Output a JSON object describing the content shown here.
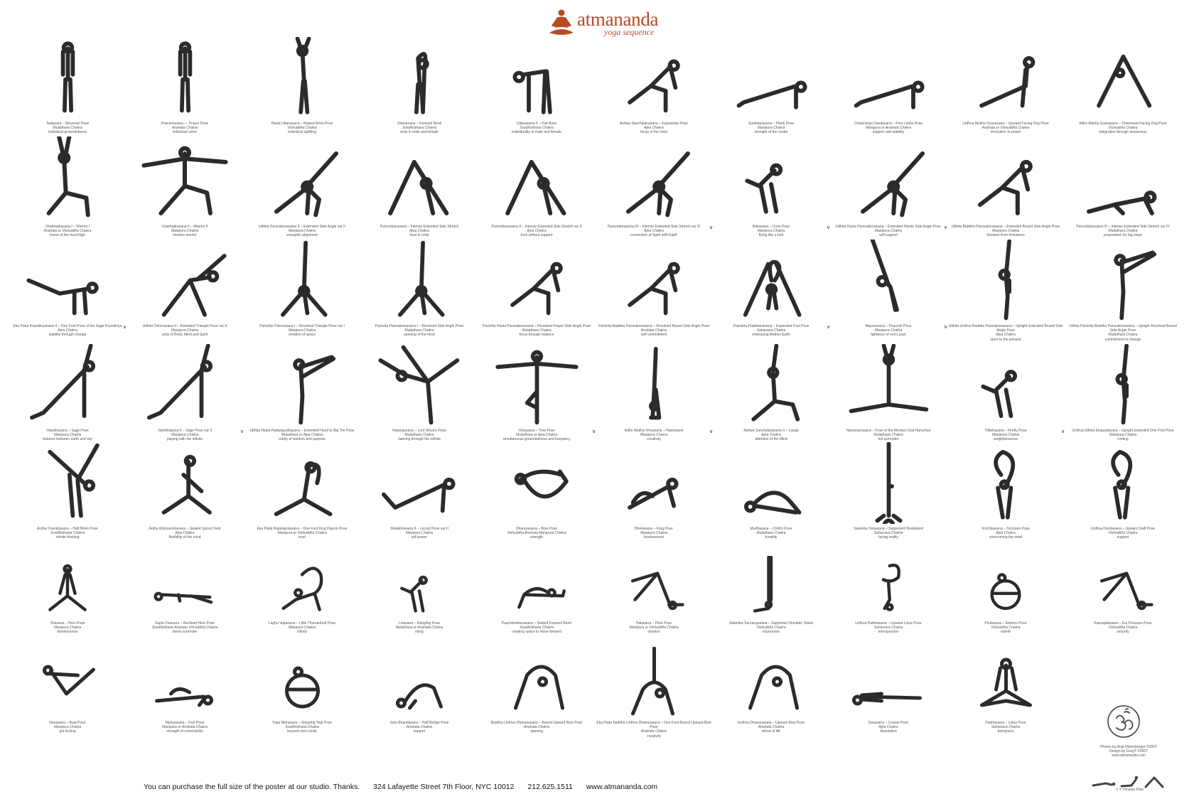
{
  "brand": {
    "name": "atmananda",
    "tagline": "yoga sequence"
  },
  "rows": [
    {
      "poses": [
        {
          "name": "Tadasana – Mountain Pose",
          "chakra": "Muladhara Chakra",
          "meaning": "individual groundedness",
          "shape": "stand"
        },
        {
          "name": "Pranamasana — Prayer Pose",
          "chakra": "Anahata Chakra",
          "meaning": "individual union",
          "shape": "stand"
        },
        {
          "name": "Hasta Uttanasana – Raised Arms Pose",
          "chakra": "Vishuddha Chakra",
          "meaning": "individual uplifting",
          "shape": "raise"
        },
        {
          "name": "Uttanasana – Forward Bend",
          "chakra": "Svadhisthana Chakra",
          "meaning": "unity in male and female",
          "shape": "fold"
        },
        {
          "name": "Uttanasana II – Flat Back",
          "chakra": "Svadhisthana Chakra",
          "meaning": "individuality of male and female",
          "shape": "flat"
        },
        {
          "name": "Ashwa Sanchalanasana – Equestrian Pose",
          "chakra": "Ajna Chakra",
          "meaning": "focus of the mind",
          "shape": "lunge"
        },
        {
          "name": "Santolanasana – Plank Pose",
          "chakra": "Manipura Chakra",
          "meaning": "strength of the center",
          "shape": "plank"
        },
        {
          "name": "Chaturanga Dandasana – Four Limbs Pose",
          "chakra": "Manipura or Anahata Chakra",
          "meaning": "support and stability",
          "shape": "plank"
        },
        {
          "name": "Urdhva Mukha Svanasana – Upward Facing Dog Pose",
          "chakra": "Anahata or Vishuddha Chakra",
          "meaning": "invocation to power",
          "shape": "updog"
        },
        {
          "name": "Adho Mukha Svanasana – Downward Facing Dog Pose",
          "chakra": "Vishuddha Chakra",
          "meaning": "integration through awareness",
          "shape": "downdog"
        }
      ]
    },
    {
      "poses": [
        {
          "name": "Virabhadrasana I – Warrior I",
          "chakra": "Anahata or Vishuddha Chakra",
          "meaning": "honor of the most high",
          "shape": "warrior1"
        },
        {
          "name": "Virabhadrasana II – Warrior II",
          "chakra": "Manipura Chakra",
          "meaning": "intuitive warrior",
          "shape": "warrior2"
        },
        {
          "name": "Utthita Parsvakonasana II – Extended Side Angle var II",
          "chakra": "Manipura Chakra",
          "meaning": "energetic alignment",
          "shape": "sideangle"
        },
        {
          "name": "Parsvottanasana – Intense Extended Side Stretch",
          "chakra": "Ajna Chakra",
          "meaning": "trust in unity",
          "shape": "pyramid"
        },
        {
          "name": "Parsvottanasana II – Intense Extended Side Stretch var II",
          "chakra": "Ajna Chakra",
          "meaning": "trust without support",
          "shape": "pyramid"
        },
        {
          "name": "Parsvottanasana III – Intense Extended Side Stretch var III",
          "chakra": "Ajna Chakra",
          "meaning": "connection of Spirit with Earth",
          "shape": "sideangle"
        },
        {
          "name": "Bakasana – Crow Pose",
          "chakra": "Manipura Chakra",
          "meaning": "flying like a bird",
          "shape": "crow"
        },
        {
          "name": "Utthita Hasta Parsvakonasana – Extended Hands Side Angle Pose",
          "chakra": "Manipura Chakra",
          "meaning": "self support",
          "shape": "sideangle"
        },
        {
          "name": "Utthita Baddha Parsvakonasana – Extended Bound Side Angle Pose",
          "chakra": "Manipura Chakra",
          "meaning": "freedom from limitations",
          "shape": "lunge"
        },
        {
          "name": "Parsvottanasana IV – Intense Extended Side Stretch var IV",
          "chakra": "Muladhara Chakra",
          "meaning": "preparation for big steps",
          "shape": "lowlunge"
        }
      ],
      "vmarks": [
        5,
        6,
        7
      ]
    },
    {
      "poses": [
        {
          "name": "Eka Pada Koundinyasana II – One Foot Pose of the Sage Koundinya",
          "chakra": "Ajna Chakra",
          "meaning": "stability through change",
          "shape": "armbalance"
        },
        {
          "name": "Utthita Trikonasana II – Extended Triangle Pose var II",
          "chakra": "Manipura Chakra",
          "meaning": "unity of Body, Mind and Spirit",
          "shape": "triangle"
        },
        {
          "name": "Parivrtta Trikonasana I – Revolved Triangle Pose var I",
          "chakra": "Manipura Chakra",
          "meaning": "creation of space",
          "shape": "triangleup"
        },
        {
          "name": "Parivrtta Parsvakonasana I – Revolved Side Angle Pose",
          "chakra": "Muladhara Chakra",
          "meaning": "opening of the mind",
          "shape": "triangleup"
        },
        {
          "name": "Parivrtta Hasta Parsvakonasana – Revolved Prayer Side Angle Pose",
          "chakra": "Muladhara Chakra",
          "meaning": "focus through balance",
          "shape": "lunge"
        },
        {
          "name": "Parivrtta Baddha Parsvakonasana – Revolved Bound Side Angle Pose",
          "chakra": "Anahata Chakra",
          "meaning": "self commitment",
          "shape": "lunge"
        },
        {
          "name": "Prasarita Padottanasana – Expanded Foot Pose",
          "chakra": "Sahasrara Chakra",
          "meaning": "embracing Mother Earth",
          "shape": "widefold"
        },
        {
          "name": "Mayurasana – Peacock Pose",
          "chakra": "Manipura Chakra",
          "meaning": "lightness of one's past",
          "shape": "peacock"
        },
        {
          "name": "Utthita Urdhva Baddha Parsvakonasana – Upright Extended Bound Side Angle Pose",
          "chakra": "Ajna Chakra",
          "meaning": "open to the present",
          "shape": "standsplit"
        },
        {
          "name": "Utthita Parivrtta Baddha Parsvakonasana – Upright Revolved Bound Side Angle Pose",
          "chakra": "Muladhara Chakra",
          "meaning": "commitment to change",
          "shape": "standleg"
        }
      ],
      "vmarks": [
        0,
        6,
        7
      ]
    },
    {
      "poses": [
        {
          "name": "Vasisthasana – Sage Pose",
          "chakra": "Manipura Chakra",
          "meaning": "balance between earth and sky",
          "shape": "sideplank"
        },
        {
          "name": "Vasisthasana II – Sage Pose var II",
          "chakra": "Manipura Chakra",
          "meaning": "playing with the infinite",
          "shape": "sideplank"
        },
        {
          "name": "Utthita Hasta Padangusthasana – Extended Hand to Big Toe Pose",
          "chakra": "Muladhara or Ajna Chakra",
          "meaning": "clarity of wisdom and purpose",
          "shape": "standleg"
        },
        {
          "name": "Natarajasana – Lord Shiva's Pose",
          "chakra": "Muladhara Chakra",
          "meaning": "dancing through the infinite",
          "shape": "dancer"
        },
        {
          "name": "Vrksasana – Tree Pose",
          "chakra": "Muladhara or Ajna Chakra",
          "meaning": "simultaneous groundedness and buoyancy",
          "shape": "tree"
        },
        {
          "name": "Adho Mukha Vrksasana – Handstand",
          "chakra": "Manipura Chakra",
          "meaning": "creativity",
          "shape": "handstand"
        },
        {
          "name": "Ashwa Sanchalanasana II – Lunge",
          "chakra": "Ajna Chakra",
          "meaning": "attention of the Mind",
          "shape": "highlunge"
        },
        {
          "name": "Hanumanasana – Pose of the Monkey God Hanuman",
          "chakra": "Muladhara Chakra",
          "meaning": "full surrender",
          "shape": "splits"
        },
        {
          "name": "Tittibhasana – Firefly Pose",
          "chakra": "Manipura Chakra",
          "meaning": "weightlessness",
          "shape": "crow"
        },
        {
          "name": "Urdhva Utthita Ekapadasana – Upright Extended One Foot Pose",
          "chakra": "Manipura Chakra",
          "meaning": "rooting",
          "shape": "standsplit"
        }
      ],
      "vmarks": [
        1,
        4,
        5,
        8
      ]
    },
    {
      "poses": [
        {
          "name": "Ardha Chandrasana – Half Moon Pose",
          "chakra": "Svadhisthana Chakra",
          "meaning": "infinite thinking",
          "shape": "halfmoon"
        },
        {
          "name": "Ardha Matsyendrasana – Seated Spinal Twist",
          "chakra": "Ajna Chakra",
          "meaning": "flexibility of the mind",
          "shape": "twist"
        },
        {
          "name": "Eka Pada Rajakapotasana – One Foot King Pigeon Pose",
          "chakra": "Manipura or Vishuddha Chakra",
          "meaning": "trust",
          "shape": "pigeon"
        },
        {
          "name": "Shalabhasana II – Locust Pose var II",
          "chakra": "Manipura Chakra",
          "meaning": "will power",
          "shape": "locust"
        },
        {
          "name": "Dhanurasana – Bow Pose",
          "chakra": "Vishuddha Anahata Manipura Chakra",
          "meaning": "strength",
          "shape": "bow"
        },
        {
          "name": "Bhekasana – Frog Pose",
          "chakra": "Manipura Chakra",
          "meaning": "fearlessness",
          "shape": "frog"
        },
        {
          "name": "Mudhasana – Child's Pose",
          "chakra": "Muladhara Chakra",
          "meaning": "humility",
          "shape": "child"
        },
        {
          "name": "Salamba Sirsasana – Supported Headstand",
          "chakra": "Sahasrara Chakra",
          "meaning": "facing reality",
          "shape": "headstand"
        },
        {
          "name": "Vrschikasana – Scorpion Pose",
          "chakra": "Ajna Chakra",
          "meaning": "overcoming the mind",
          "shape": "scorpion"
        },
        {
          "name": "Urdhva Dandasana – Upward Staff Pose",
          "chakra": "Vishuddha Chakra",
          "meaning": "support",
          "shape": "scorpion"
        }
      ]
    },
    {
      "poses": [
        {
          "name": "Virasana – Hero Pose",
          "chakra": "Manipura Chakra",
          "meaning": "timelessness",
          "shape": "seated"
        },
        {
          "name": "Supta Virasana – Reclined Hero Pose",
          "chakra": "Svadhisthana Anahata Vishuddha Chakra",
          "meaning": "sweet surrender",
          "shape": "reclined"
        },
        {
          "name": "Laghu Vajrasana – Little Thunderbolt Pose",
          "chakra": "Manipura Chakra",
          "meaning": "infinity",
          "shape": "camel"
        },
        {
          "name": "Lolasana – Dangling Pose",
          "chakra": "Muladhara or Anahata Chakra",
          "meaning": "rising",
          "shape": "crow"
        },
        {
          "name": "Paschimottanasana – Seated Forward Bend",
          "chakra": "Svadhisthana Chakra",
          "meaning": "creating space to move forward",
          "shape": "seatfold"
        },
        {
          "name": "Halasana – Plow Pose",
          "chakra": "Manipura or Vishuddha Chakra",
          "meaning": "intuition",
          "shape": "plow"
        },
        {
          "name": "Salamba Sarvangasana – Supported Shoulder Stand",
          "chakra": "Vishuddha Chakra",
          "meaning": "expression",
          "shape": "shoulderstand"
        },
        {
          "name": "Urdhva Padmasana – Upward Lotus Pose",
          "chakra": "Sahasrara Chakra",
          "meaning": "introspection",
          "shape": "uplotus"
        },
        {
          "name": "Pindasana – Embryo Pose",
          "chakra": "Vishuddha Chakra",
          "meaning": "rebirth",
          "shape": "embryo"
        },
        {
          "name": "Karnapidasana – Ear Pressure Pose",
          "chakra": "Vishuddha Chakra",
          "meaning": "security",
          "shape": "plow"
        }
      ]
    },
    {
      "poses": [
        {
          "name": "Navasana – Boat Pose",
          "chakra": "Manipura Chakra",
          "meaning": "gut feeling",
          "shape": "boat"
        },
        {
          "name": "Matsyasana – Fish Pose",
          "chakra": "Manipura or Anahata Chakra",
          "meaning": "strength of vulnerability",
          "shape": "fish"
        },
        {
          "name": "Yoga Nidrasana – Sleeping Yogi Pose",
          "chakra": "Svadhisthana Chakra",
          "meaning": "beyond one's body",
          "shape": "embryo"
        },
        {
          "name": "Setu Bhandasana – Half Bridge Pose",
          "chakra": "Anahata Chakra",
          "meaning": "support",
          "shape": "bridge"
        },
        {
          "name": "Baddha Urdhva Dhanurasana – Bound Upward Bow Pose",
          "chakra": "Anahata Chakra",
          "meaning": "opening",
          "shape": "wheel"
        },
        {
          "name": "Eka Pada Baddha Urdhva Dhanurasana – One Foot Bound Upward Bow Pose",
          "chakra": "Anahata Chakra",
          "meaning": "creativity",
          "shape": "wheelleg"
        },
        {
          "name": "Urdhva Dhanurasana – Upward Bow Pose",
          "chakra": "Anahata Chakra",
          "meaning": "wheel of life",
          "shape": "wheel"
        },
        {
          "name": "Savasana – Corpse Pose",
          "chakra": "Ajna Chakra",
          "meaning": "dissolution",
          "shape": "corpse"
        },
        {
          "name": "Padmasana – Lotus Pose",
          "chakra": "Sahasrara Chakra",
          "meaning": "beingness",
          "shape": "lotus"
        }
      ]
    }
  ],
  "credits": {
    "line1": "Photos by Anja Hitzenberger ©2007",
    "line2": "Design by GregT ©2007",
    "line3": "www.atmananda.com"
  },
  "vinyasa_label": "= Vinyasa Flow",
  "footer": {
    "purchase": "You can purchase the full size of the poster at our studio. Thanks.",
    "address": "324 Lafayette Street 7th Floor, NYC 10012",
    "phone": "212.625.1511",
    "website": "www.atmananda.com"
  },
  "icons": {
    "logo": "meditating-figure-icon",
    "om": "om-symbol-icon",
    "vinyasa": "vinyasa-sequence-icon",
    "vmark": "vinyasa-mark-icon"
  },
  "colors": {
    "brand": "#b94a25",
    "figure": "#2b2b2b",
    "text": "#555555"
  }
}
